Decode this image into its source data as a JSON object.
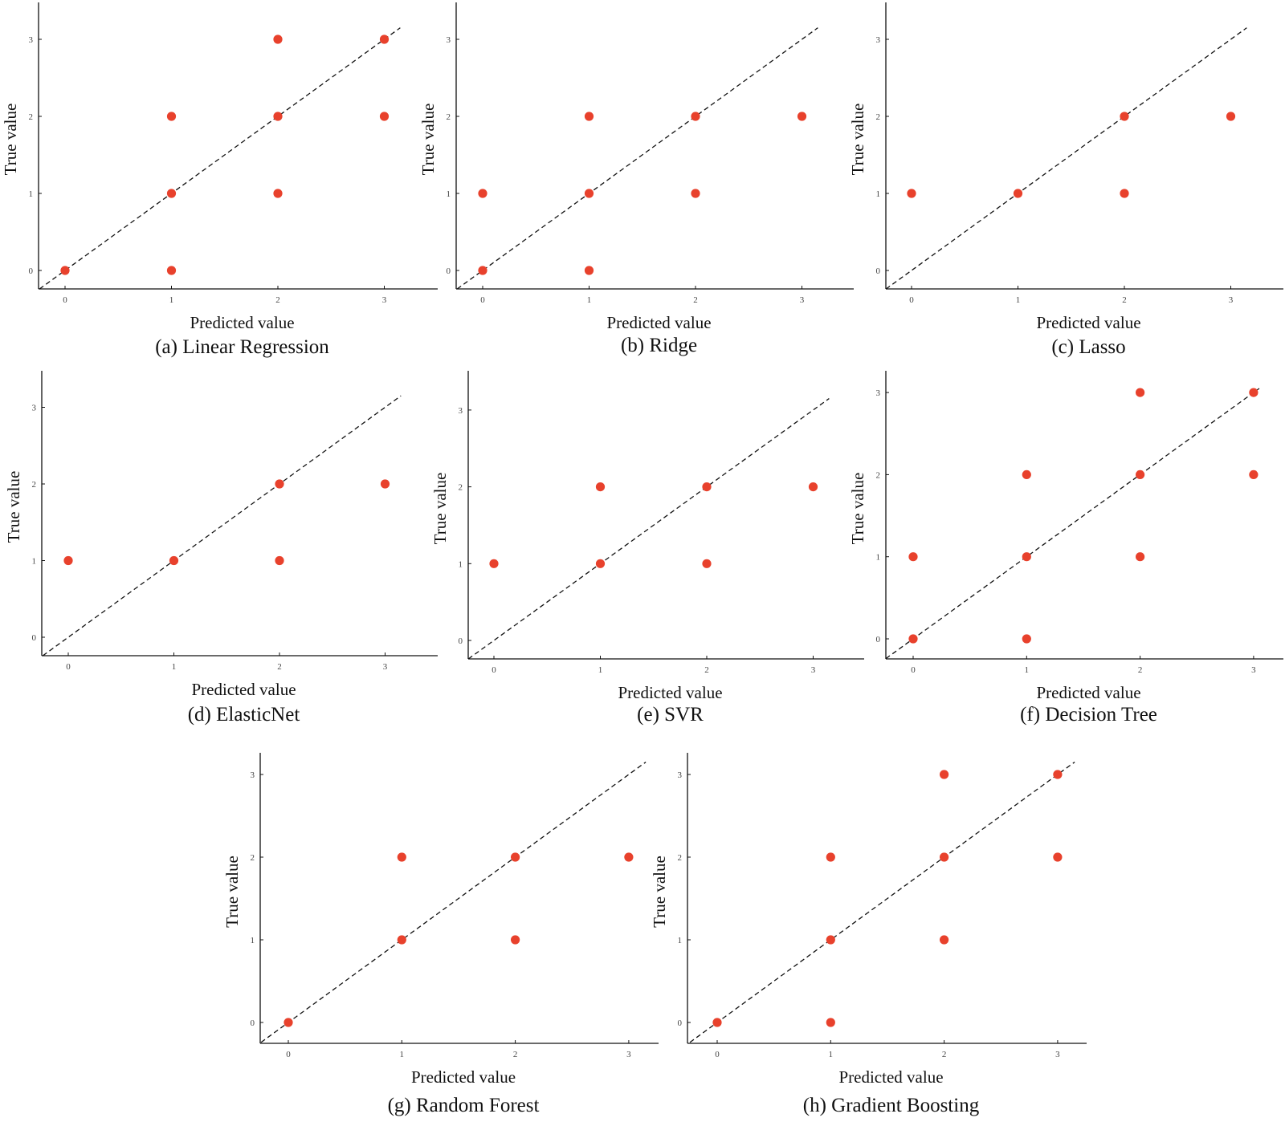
{
  "figure": {
    "point_color": "#e8412c",
    "line_color": "#111111",
    "diagonal_style": "dashed black line y = x"
  },
  "chart_data": [
    {
      "id": "a",
      "type": "scatter",
      "caption": "(a) Linear Regression",
      "xlabel": "Predicted value",
      "ylabel": "True value",
      "xlim": [
        -0.25,
        3.5
      ],
      "ylim": [
        -0.25,
        3.5
      ],
      "xticks": [
        "0",
        "1",
        "2",
        "3"
      ],
      "yticks": [
        "0",
        "1",
        "2",
        "3"
      ],
      "points": [
        [
          0,
          0
        ],
        [
          1,
          0
        ],
        [
          1,
          1
        ],
        [
          1,
          2
        ],
        [
          2,
          1
        ],
        [
          2,
          2
        ],
        [
          2,
          3
        ],
        [
          3,
          2
        ],
        [
          3,
          3
        ]
      ],
      "diagonal_end": 3.15
    },
    {
      "id": "b",
      "type": "scatter",
      "caption": "(b) Ridge",
      "xlabel": "Predicted value",
      "ylabel": "True value",
      "xlim": [
        -0.25,
        3.5
      ],
      "ylim": [
        -0.25,
        3.5
      ],
      "xticks": [
        "0",
        "1",
        "2",
        "3"
      ],
      "yticks": [
        "0",
        "1",
        "2",
        "3"
      ],
      "points": [
        [
          0,
          0
        ],
        [
          0,
          1
        ],
        [
          1,
          0
        ],
        [
          1,
          1
        ],
        [
          1,
          2
        ],
        [
          2,
          1
        ],
        [
          2,
          2
        ],
        [
          3,
          2
        ]
      ],
      "diagonal_end": 3.15
    },
    {
      "id": "c",
      "type": "scatter",
      "caption": "(c) Lasso",
      "xlabel": "Predicted value",
      "ylabel": "True value",
      "xlim": [
        -0.25,
        3.5
      ],
      "ylim": [
        -0.25,
        3.5
      ],
      "xticks": [
        "0",
        "1",
        "2",
        "3"
      ],
      "yticks": [
        "0",
        "1",
        "2",
        "3"
      ],
      "points": [
        [
          0,
          1
        ],
        [
          1,
          1
        ],
        [
          2,
          1
        ],
        [
          2,
          2
        ],
        [
          3,
          2
        ]
      ],
      "diagonal_end": 3.15
    },
    {
      "id": "d",
      "type": "scatter",
      "caption": "(d) ElasticNet",
      "xlabel": "Predicted value",
      "ylabel": "True value",
      "xlim": [
        -0.25,
        3.5
      ],
      "ylim": [
        -0.25,
        3.5
      ],
      "xticks": [
        "0",
        "1",
        "2",
        "3"
      ],
      "yticks": [
        "0",
        "1",
        "2",
        "3"
      ],
      "points": [
        [
          0,
          1
        ],
        [
          1,
          1
        ],
        [
          2,
          1
        ],
        [
          2,
          2
        ],
        [
          3,
          2
        ]
      ],
      "diagonal_end": 3.15
    },
    {
      "id": "e",
      "type": "scatter",
      "caption": "(e) SVR",
      "xlabel": "Predicted value",
      "ylabel": "True value",
      "xlim": [
        -0.25,
        3.5
      ],
      "ylim": [
        -0.25,
        3.5
      ],
      "xticks": [
        "0",
        "1",
        "2",
        "3"
      ],
      "yticks": [
        "0",
        "1",
        "2",
        "3"
      ],
      "points": [
        [
          0,
          1
        ],
        [
          1,
          1
        ],
        [
          1,
          2
        ],
        [
          2,
          1
        ],
        [
          2,
          2
        ],
        [
          3,
          2
        ]
      ],
      "diagonal_end": 3.15
    },
    {
      "id": "f",
      "type": "scatter",
      "caption": "(f) Decision Tree",
      "xlabel": "Predicted value",
      "ylabel": "True value",
      "xlim": [
        -0.25,
        3.25
      ],
      "ylim": [
        -0.25,
        3.25
      ],
      "xticks": [
        "0",
        "1",
        "2",
        "3"
      ],
      "yticks": [
        "0",
        "1",
        "2",
        "3"
      ],
      "points": [
        [
          0,
          0
        ],
        [
          0,
          1
        ],
        [
          1,
          0
        ],
        [
          1,
          1
        ],
        [
          1,
          2
        ],
        [
          2,
          1
        ],
        [
          2,
          2
        ],
        [
          2,
          3
        ],
        [
          3,
          2
        ],
        [
          3,
          3
        ]
      ],
      "diagonal_end": 3.05
    },
    {
      "id": "g",
      "type": "scatter",
      "caption": "(g) Random Forest",
      "xlabel": "Predicted value",
      "ylabel": "True value",
      "xlim": [
        -0.25,
        3.25
      ],
      "ylim": [
        -0.25,
        3.25
      ],
      "xticks": [
        "0",
        "1",
        "2",
        "3"
      ],
      "yticks": [
        "0",
        "1",
        "2",
        "3"
      ],
      "points": [
        [
          0,
          0
        ],
        [
          1,
          1
        ],
        [
          1,
          2
        ],
        [
          2,
          1
        ],
        [
          2,
          2
        ],
        [
          3,
          2
        ]
      ],
      "diagonal_end": 3.15
    },
    {
      "id": "h",
      "type": "scatter",
      "caption": "(h) Gradient Boosting",
      "xlabel": "Predicted value",
      "ylabel": "True value",
      "xlim": [
        -0.25,
        3.25
      ],
      "ylim": [
        -0.25,
        3.25
      ],
      "xticks": [
        "0",
        "1",
        "2",
        "3"
      ],
      "yticks": [
        "0",
        "1",
        "2",
        "3"
      ],
      "points": [
        [
          0,
          0
        ],
        [
          1,
          0
        ],
        [
          1,
          1
        ],
        [
          1,
          2
        ],
        [
          2,
          1
        ],
        [
          2,
          2
        ],
        [
          2,
          3
        ],
        [
          3,
          2
        ],
        [
          3,
          3
        ]
      ],
      "diagonal_end": 3.15
    }
  ]
}
